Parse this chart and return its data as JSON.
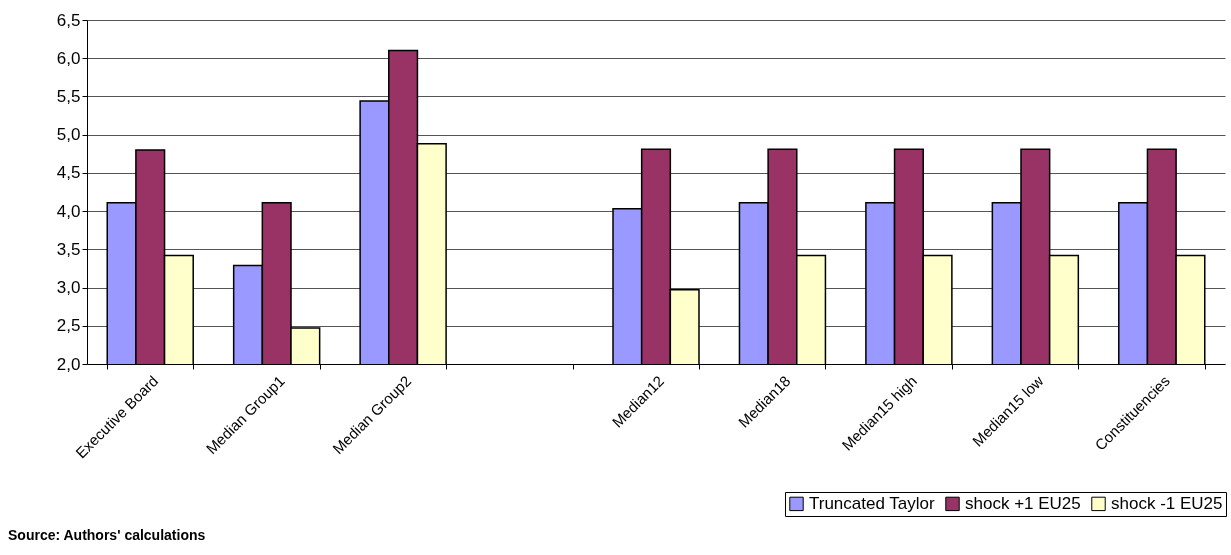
{
  "chart_data": {
    "type": "bar",
    "categories": [
      "Executive Board",
      "Median Group1",
      "Median Group2",
      null,
      "Median12",
      "Median18",
      "Median15 high",
      "Median15 low",
      "Constituencies"
    ],
    "series": [
      {
        "name": "Truncated Taylor",
        "color": "#9999ff",
        "values": [
          4.11,
          3.29,
          5.44,
          null,
          4.03,
          4.11,
          4.11,
          4.11,
          4.11
        ]
      },
      {
        "name": "shock +1 EU25",
        "color": "#993366",
        "values": [
          4.8,
          4.11,
          6.1,
          null,
          4.81,
          4.81,
          4.81,
          4.81,
          4.81
        ]
      },
      {
        "name": "shock -1 EU25",
        "color": "#ffffcc",
        "values": [
          3.42,
          2.47,
          4.88,
          null,
          2.97,
          3.42,
          3.42,
          3.42,
          3.42
        ]
      }
    ],
    "ylim": [
      2.0,
      6.5
    ],
    "yticks": [
      {
        "value": 2.0,
        "label": "2,0"
      },
      {
        "value": 2.5,
        "label": "2,5"
      },
      {
        "value": 3.0,
        "label": "3,0"
      },
      {
        "value": 3.5,
        "label": "3,5"
      },
      {
        "value": 4.0,
        "label": "4,0"
      },
      {
        "value": 4.5,
        "label": "4,5"
      },
      {
        "value": 5.0,
        "label": "5,0"
      },
      {
        "value": 5.5,
        "label": "5,5"
      },
      {
        "value": 6.0,
        "label": "6,0"
      },
      {
        "value": 6.5,
        "label": "6,5"
      }
    ],
    "grid": "y",
    "legend": "bottom right",
    "annotations": [
      "Source: Authors' calculations"
    ]
  }
}
